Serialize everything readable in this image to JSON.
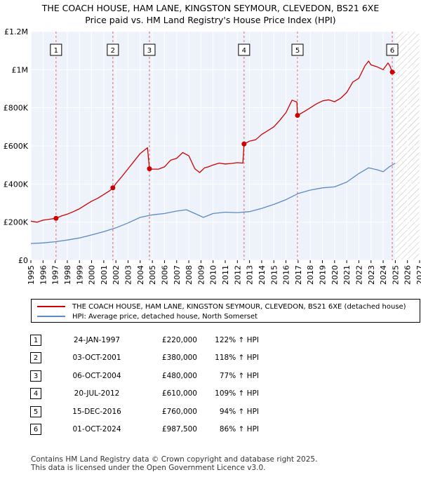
{
  "title": {
    "line1": "THE COACH HOUSE, HAM LANE, KINGSTON SEYMOUR, CLEVEDON, BS21 6XE",
    "line2": "Price paid vs. HM Land Registry's House Price Index (HPI)"
  },
  "chart_data": {
    "type": "line",
    "title": "THE COACH HOUSE, HAM LANE, KINGSTON SEYMOUR, CLEVEDON, BS21 6XE — Price paid vs. HM Land Registry's House Price Index (HPI)",
    "xlabel": "",
    "ylabel": "",
    "xlim": [
      1995,
      2027
    ],
    "ylim": [
      0,
      1200000
    ],
    "y_ticks": [
      {
        "value": 0,
        "label": "£0"
      },
      {
        "value": 200000,
        "label": "£200K"
      },
      {
        "value": 400000,
        "label": "£400K"
      },
      {
        "value": 600000,
        "label": "£600K"
      },
      {
        "value": 800000,
        "label": "£800K"
      },
      {
        "value": 1000000,
        "label": "£1M"
      },
      {
        "value": 1200000,
        "label": "£1.2M"
      }
    ],
    "x_ticks": [
      1995,
      1996,
      1997,
      1998,
      1999,
      2000,
      2001,
      2002,
      2003,
      2004,
      2005,
      2006,
      2007,
      2008,
      2009,
      2010,
      2011,
      2012,
      2013,
      2014,
      2015,
      2016,
      2017,
      2018,
      2019,
      2020,
      2021,
      2022,
      2023,
      2024,
      2025,
      2026,
      2027
    ],
    "forecast_start": 2025.0,
    "series": [
      {
        "name": "THE COACH HOUSE, HAM LANE, KINGSTON SEYMOUR, CLEVEDON, BS21 6XE (detached house)",
        "color": "#cc0000",
        "x": [
          1995.0,
          1995.5,
          1996.0,
          1996.5,
          1997.07,
          1997.5,
          1998.0,
          1998.5,
          1999.0,
          1999.5,
          2000.0,
          2000.5,
          2001.0,
          2001.5,
          2001.75,
          2002.0,
          2002.5,
          2003.0,
          2003.5,
          2004.0,
          2004.4,
          2004.6,
          2004.76,
          2005.0,
          2005.5,
          2006.0,
          2006.5,
          2007.0,
          2007.5,
          2008.0,
          2008.5,
          2008.9,
          2009.3,
          2009.6,
          2010.0,
          2010.5,
          2011.0,
          2011.5,
          2012.0,
          2012.45,
          2012.55,
          2013.0,
          2013.5,
          2014.0,
          2014.5,
          2015.0,
          2015.5,
          2016.0,
          2016.5,
          2016.9,
          2016.95,
          2017.5,
          2018.0,
          2018.5,
          2019.0,
          2019.5,
          2020.0,
          2020.5,
          2021.0,
          2021.5,
          2022.0,
          2022.5,
          2022.8,
          2023.0,
          2023.5,
          2024.0,
          2024.4,
          2024.55,
          2024.75,
          2025.0
        ],
        "y": [
          205000,
          200000,
          210000,
          215000,
          220000,
          232000,
          242000,
          255000,
          270000,
          290000,
          310000,
          325000,
          345000,
          365000,
          380000,
          402000,
          440000,
          480000,
          520000,
          560000,
          580000,
          590000,
          480000,
          478000,
          478000,
          490000,
          525000,
          535000,
          565000,
          548000,
          480000,
          460000,
          485000,
          490000,
          500000,
          510000,
          505000,
          508000,
          512000,
          510000,
          610000,
          625000,
          632000,
          660000,
          680000,
          700000,
          735000,
          775000,
          840000,
          830000,
          760000,
          780000,
          800000,
          820000,
          836000,
          842000,
          832000,
          850000,
          880000,
          935000,
          955000,
          1020000,
          1045000,
          1025000,
          1015000,
          1000000,
          1035000,
          1020000,
          987500,
          985000
        ]
      },
      {
        "name": "HPI: Average price, detached house, North Somerset",
        "color": "#5b8ac4",
        "x": [
          1995.0,
          1996.0,
          1997.0,
          1998.0,
          1999.0,
          2000.0,
          2001.0,
          2002.0,
          2003.0,
          2004.0,
          2005.0,
          2006.0,
          2007.0,
          2007.8,
          2008.5,
          2009.2,
          2010.0,
          2011.0,
          2012.0,
          2013.0,
          2014.0,
          2015.0,
          2016.0,
          2017.0,
          2018.0,
          2019.0,
          2020.0,
          2021.0,
          2022.0,
          2022.8,
          2023.5,
          2024.0,
          2024.5,
          2025.0
        ],
        "y": [
          88000,
          91000,
          97000,
          106000,
          117000,
          133000,
          150000,
          170000,
          196000,
          225000,
          238000,
          245000,
          258000,
          265000,
          245000,
          225000,
          245000,
          252000,
          250000,
          255000,
          272000,
          293000,
          318000,
          350000,
          368000,
          380000,
          385000,
          410000,
          455000,
          485000,
          475000,
          465000,
          490000,
          510000
        ]
      }
    ],
    "sales": [
      {
        "id": "1",
        "x": 1997.07,
        "value": 220000
      },
      {
        "id": "2",
        "x": 2001.75,
        "value": 380000
      },
      {
        "id": "3",
        "x": 2004.76,
        "value": 480000
      },
      {
        "id": "4",
        "x": 2012.55,
        "value": 610000
      },
      {
        "id": "5",
        "x": 2016.95,
        "value": 760000
      },
      {
        "id": "6",
        "x": 2024.75,
        "value": 987500
      }
    ]
  },
  "legend": {
    "property_label": "THE COACH HOUSE, HAM LANE, KINGSTON SEYMOUR, CLEVEDON, BS21 6XE (detached house)",
    "hpi_label": "HPI: Average price, detached house, North Somerset"
  },
  "transactions": [
    {
      "num": "1",
      "date": "24-JAN-1997",
      "price": "£220,000",
      "hpi": "122% ↑ HPI"
    },
    {
      "num": "2",
      "date": "03-OCT-2001",
      "price": "£380,000",
      "hpi": "118% ↑ HPI"
    },
    {
      "num": "3",
      "date": "06-OCT-2004",
      "price": "£480,000",
      "hpi": "77% ↑ HPI"
    },
    {
      "num": "4",
      "date": "20-JUL-2012",
      "price": "£610,000",
      "hpi": "109% ↑ HPI"
    },
    {
      "num": "5",
      "date": "15-DEC-2016",
      "price": "£760,000",
      "hpi": "94% ↑ HPI"
    },
    {
      "num": "6",
      "date": "01-OCT-2024",
      "price": "£987,500",
      "hpi": "86% ↑ HPI"
    }
  ],
  "footer": {
    "line1": "Contains HM Land Registry data © Crown copyright and database right 2025.",
    "line2": "This data is licensed under the Open Government Licence v3.0."
  },
  "colors": {
    "property": "#cc0000",
    "hpi": "#5b8ac4",
    "plot_bg": "#eef2fa",
    "grid": "#ffffff",
    "marker_line": "#e06666"
  }
}
